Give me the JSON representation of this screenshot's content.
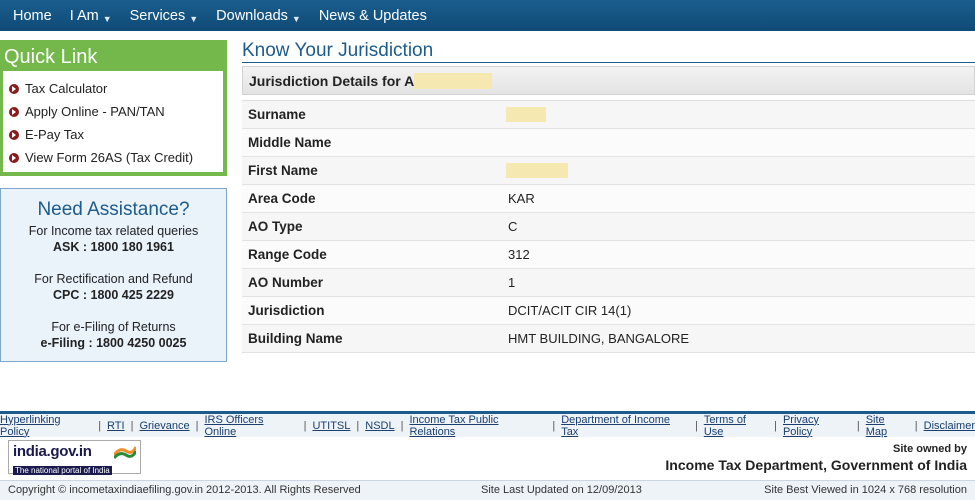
{
  "nav": {
    "items": [
      {
        "label": "Home",
        "dropdown": false
      },
      {
        "label": "I Am",
        "dropdown": true
      },
      {
        "label": "Services",
        "dropdown": true
      },
      {
        "label": "Downloads",
        "dropdown": true
      },
      {
        "label": "News & Updates",
        "dropdown": false
      }
    ]
  },
  "quick_link": {
    "title": "Quick Link",
    "items": [
      "Tax Calculator",
      "Apply Online - PAN/TAN",
      "E-Pay Tax",
      "View Form 26AS (Tax Credit)"
    ]
  },
  "assistance": {
    "title": "Need Assistance?",
    "blocks": [
      {
        "line": "For Income tax related queries",
        "strong": "ASK : 1800 180 1961"
      },
      {
        "line": "For Rectification and Refund",
        "strong": "CPC : 1800 425 2229"
      },
      {
        "line": "For e-Filing of Returns",
        "strong": "e-Filing : 1800 4250 0025"
      }
    ]
  },
  "main": {
    "title": "Know Your Jurisdiction",
    "details_heading": "Jurisdiction Details for A",
    "rows": [
      {
        "label": "Surname",
        "value": "",
        "redacted": true
      },
      {
        "label": "Middle Name",
        "value": "",
        "redacted": false
      },
      {
        "label": "First Name",
        "value": "",
        "redacted": true
      },
      {
        "label": "Area Code",
        "value": "KAR",
        "redacted": false
      },
      {
        "label": "AO Type",
        "value": "C",
        "redacted": false
      },
      {
        "label": "Range Code",
        "value": "312",
        "redacted": false
      },
      {
        "label": "AO Number",
        "value": "1",
        "redacted": false
      },
      {
        "label": "Jurisdiction",
        "value": "DCIT/ACIT CIR 14(1)",
        "redacted": false
      },
      {
        "label": "Building Name",
        "value": "HMT BUILDING, BANGALORE",
        "redacted": false
      }
    ]
  },
  "footer": {
    "links": [
      "Hyperlinking Policy",
      "RTI",
      "Grievance",
      "IRS Officers Online",
      "UTITSL",
      "NSDL",
      "Income Tax Public Relations",
      "Department of Income Tax",
      "Terms of Use",
      "Privacy Policy",
      "Site Map",
      "Disclaimer"
    ],
    "logo_text": "india.gov.in",
    "logo_tagline": "The national portal of India",
    "owner_line1": "Site owned by",
    "owner_line2": "Income Tax Department, Government of India",
    "copyright": "Copyright © incometaxindiaefiling.gov.in 2012-2013. All Rights Reserved",
    "last_updated": "Site Last Updated on 12/09/2013",
    "best_viewed": "Site Best Viewed in 1024 x 768 resolution"
  },
  "colors": {
    "nav_bg": "#0f4a76",
    "accent_blue": "#1d5b8c",
    "quick_link_green": "#74b84b",
    "bullet_red": "#8b1a1a",
    "redaction": "#f5e8b0"
  }
}
